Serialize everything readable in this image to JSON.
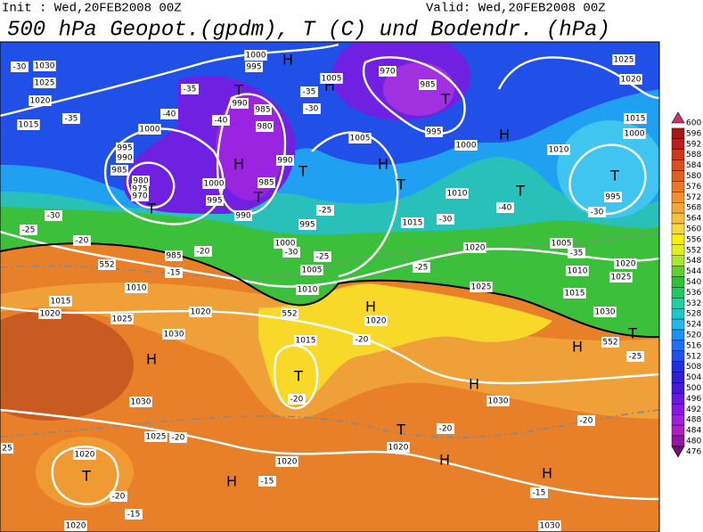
{
  "header": {
    "init": "Init : Wed,20FEB2008 00Z",
    "valid": "Valid: Wed,20FEB2008 00Z",
    "title": "500 hPa Geopot.(gpdm), T (C) und Bodendr. (hPa)"
  },
  "colorbar": {
    "labels": [
      600,
      596,
      592,
      588,
      584,
      580,
      576,
      572,
      568,
      564,
      560,
      556,
      552,
      548,
      544,
      540,
      536,
      532,
      528,
      524,
      520,
      516,
      512,
      508,
      504,
      500,
      496,
      492,
      488,
      484,
      480,
      476
    ]
  },
  "map": {
    "labels": [
      "H",
      "H",
      970,
      1005,
      "T",
      985,
      "T",
      995,
      "H",
      1025,
      1020,
      1015,
      1000,
      1010,
      "T",
      995,
      -30,
      "H",
      "T",
      "T",
      1005,
      1000,
      1010,
      "T",
      -40,
      -30,
      1015,
      1020,
      1005,
      -35,
      1010,
      1020,
      1025,
      1015,
      1030,
      "H",
      -25,
      "T",
      -25,
      1025,
      -30,
      1030,
      1025,
      1020,
      1015,
      -35,
      -40,
      -35,
      1000,
      995,
      990,
      985,
      980,
      975,
      970,
      "T",
      "H",
      1000,
      995,
      990,
      "T",
      985,
      990,
      980,
      985,
      990,
      1000,
      995,
      -30,
      -35,
      -40,
      -30,
      -25,
      -20,
      985,
      -15,
      1010,
      1015,
      1020,
      1025,
      1020,
      1030,
      "H",
      1030,
      1025,
      -20,
      1020,
      "T",
      -20,
      -15,
      1020,
      "H",
      -15,
      1020,
      1015,
      "T",
      -20,
      "H",
      1020,
      -20,
      "T",
      1020,
      -20,
      "H",
      1030,
      -20,
      "H",
      "H",
      -15,
      1030,
      1005,
      1010,
      1000,
      -30,
      -25,
      -20,
      995,
      -25,
      552,
      552,
      552,
      25
    ]
  }
}
